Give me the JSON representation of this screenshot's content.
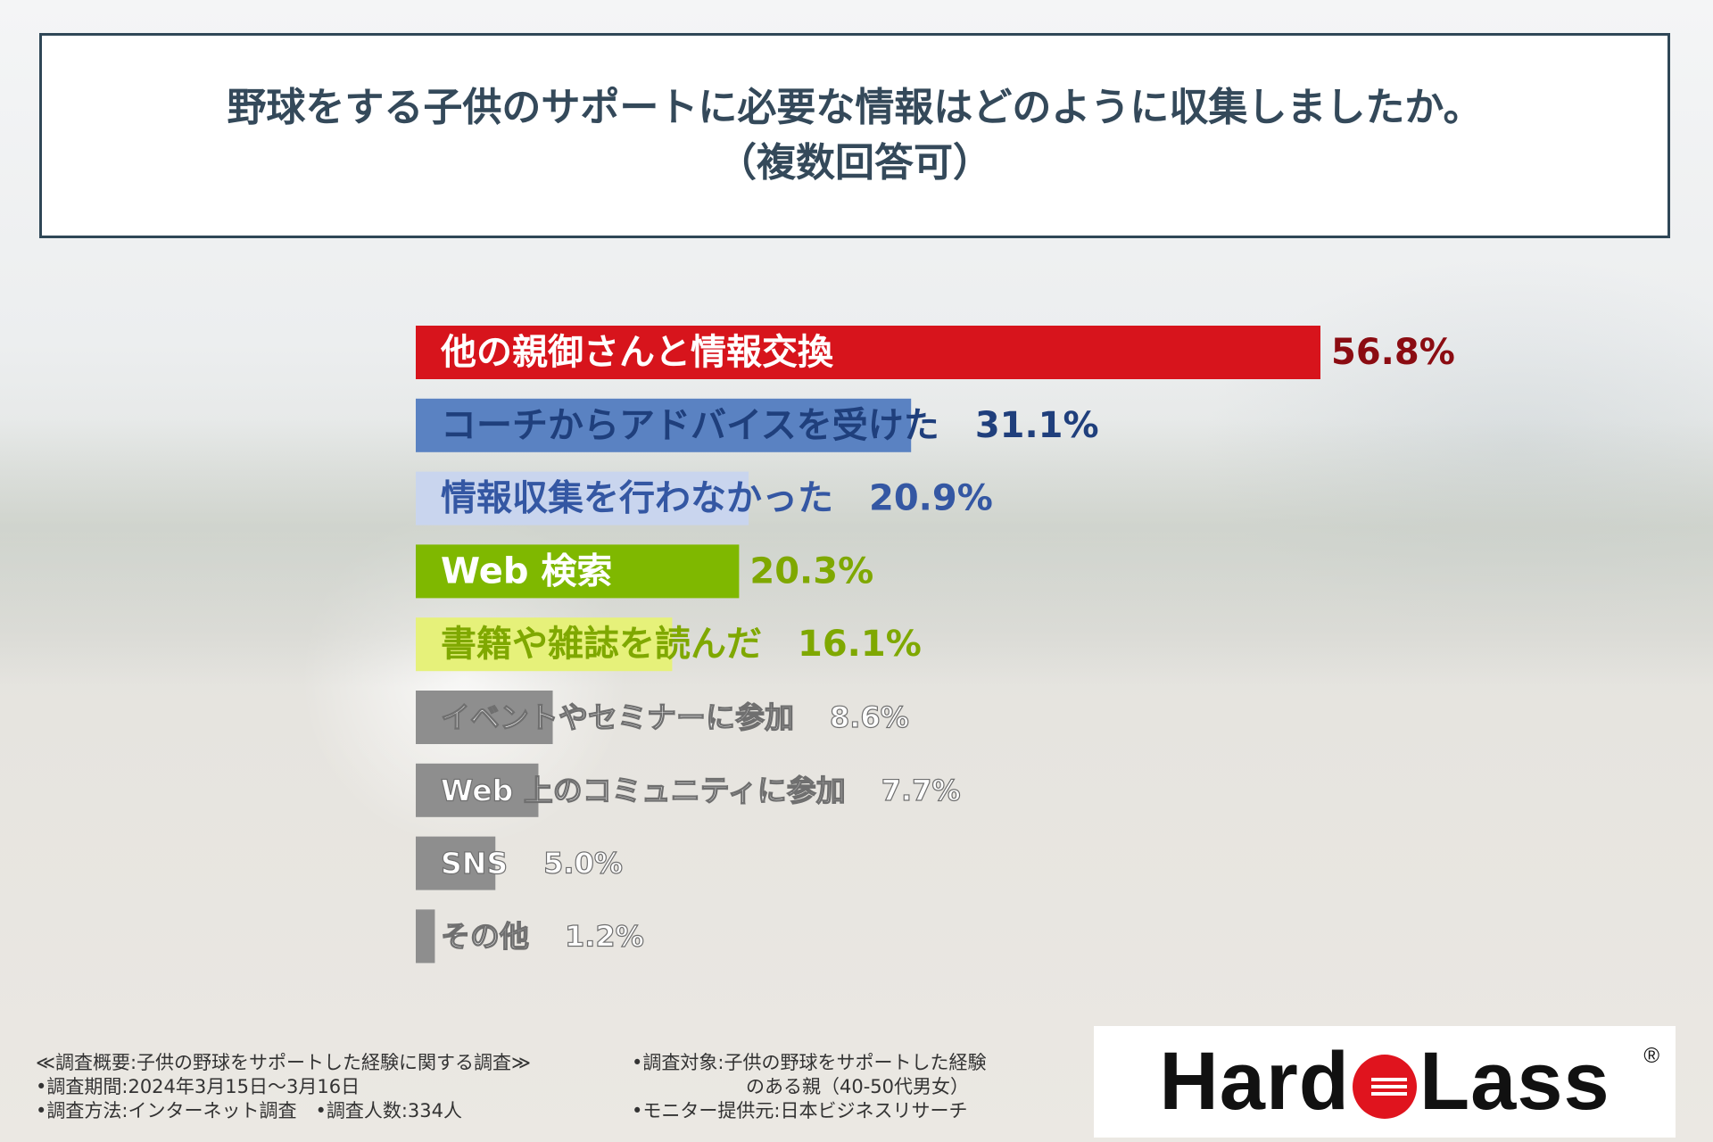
{
  "title": {
    "line1": "野球をする子供のサポートに必要な情報はどのように収集しましたか。",
    "line2": "（複数回答可）"
  },
  "chart_data": {
    "type": "bar",
    "orientation": "horizontal",
    "unit": "%",
    "xlim": [
      0,
      56.8
    ],
    "categories": [
      "他の親御さんと情報交換",
      "コーチからアドバイスを受けた",
      "情報収集を行わなかった",
      "Web 検索",
      "書籍や雑誌を読んだ",
      "イベントやセミナーに参加",
      "Web 上のコミュニティに参加",
      "SNS",
      "その他"
    ],
    "values": [
      56.8,
      31.1,
      20.9,
      20.3,
      16.1,
      8.6,
      7.7,
      5.0,
      1.2
    ],
    "value_labels": [
      "56.8%",
      "31.1%",
      "20.9%",
      "20.3%",
      "16.1%",
      "8.6%",
      "7.7%",
      "5.0%",
      "1.2%"
    ],
    "colors": {
      "bars": [
        "#d7141c",
        "#5a82c2",
        "#c9d5ee",
        "#7fb800",
        "#e6f17a",
        "#8e8e8e",
        "#8e8e8e",
        "#8e8e8e",
        "#8e8e8e"
      ],
      "labels": [
        "#ffffff",
        "#1f3f7c",
        "#3457a3",
        "#ffffff",
        "#7fa800",
        "#ffffff",
        "#ffffff",
        "#ffffff",
        "#ffffff"
      ],
      "values": [
        "#8b0c12",
        "#1f3f7c",
        "#3457a3",
        "#7fa800",
        "#7fa800",
        "#ffffff",
        "#ffffff",
        "#ffffff",
        "#ffffff"
      ]
    }
  },
  "footer": {
    "left": [
      "≪調査概要:子供の野球をサポートした経験に関する調査≫",
      "•調査期間:2024年3月15日～3月16日",
      "•調査方法:インターネット調査　•調査人数:334人"
    ],
    "right": [
      "•調査対象:子供の野球をサポートした経験",
      "のある親（40-50代男女）",
      "•モニター提供元:日本ビジネスリサーチ"
    ]
  },
  "logo": {
    "text_left": "Hard",
    "text_right": "Lass",
    "registered": "®"
  }
}
